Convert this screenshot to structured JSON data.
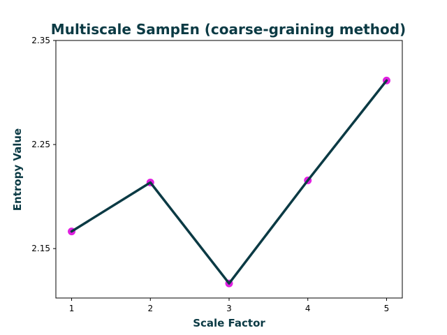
{
  "chart_data": {
    "type": "line",
    "title": "Multiscale SampEn (coarse-graining method)",
    "xlabel": "Scale Factor",
    "ylabel": "Entropy Value",
    "x": [
      1,
      2,
      3,
      4,
      5
    ],
    "series": [
      {
        "values": [
          2.1665,
          2.2135,
          2.1165,
          2.2155,
          2.3115
        ]
      }
    ],
    "xlim": [
      0.8,
      5.2
    ],
    "ylim": [
      2.1025,
      2.35
    ],
    "xticks": [
      "1",
      "2",
      "3",
      "4",
      "5"
    ],
    "yticks": [
      {
        "value": 2.15,
        "label": "2.15"
      },
      {
        "value": 2.25,
        "label": "2.25"
      },
      {
        "value": 2.35,
        "label": "2.35"
      }
    ],
    "grid": false,
    "legend": "none",
    "colors": {
      "line": "#0b3a44",
      "marker": "#e020e0",
      "text": "#0b3a44"
    }
  }
}
